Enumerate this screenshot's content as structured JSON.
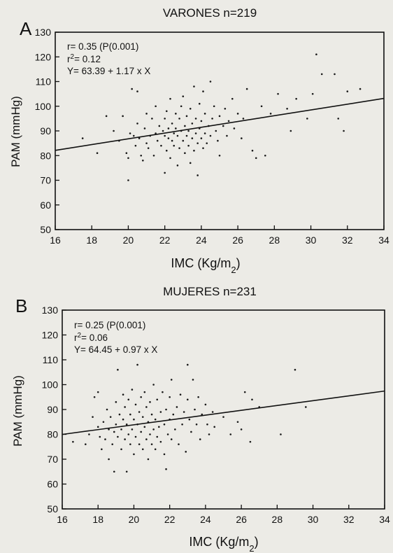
{
  "chart_data": [
    {
      "type": "scatter",
      "panel_label": "A",
      "title": "VARONES n=219",
      "xlabel": "IMC (Kg/m2)",
      "ylabel": "PAM (mmHg)",
      "xlim": [
        16,
        34
      ],
      "ylim": [
        50,
        130
      ],
      "xticks": [
        16,
        18,
        20,
        22,
        24,
        26,
        28,
        30,
        32,
        34
      ],
      "yticks": [
        50,
        60,
        70,
        80,
        90,
        100,
        110,
        120,
        130
      ],
      "annotations": [
        "r= 0.35 (P(0.001)",
        "r2= 0.12",
        "Y= 63.39 + 1.17 x X"
      ],
      "regression": {
        "intercept": 63.39,
        "slope": 1.17
      },
      "grid": false,
      "points": [
        [
          17.5,
          87
        ],
        [
          18.3,
          81
        ],
        [
          18.8,
          96
        ],
        [
          19.2,
          90
        ],
        [
          19.5,
          86
        ],
        [
          19.7,
          96
        ],
        [
          19.9,
          81
        ],
        [
          20.0,
          79
        ],
        [
          20.0,
          70
        ],
        [
          20.1,
          89
        ],
        [
          20.2,
          107
        ],
        [
          20.3,
          88
        ],
        [
          20.4,
          84
        ],
        [
          20.5,
          106
        ],
        [
          20.5,
          93
        ],
        [
          20.6,
          87
        ],
        [
          20.7,
          80
        ],
        [
          20.8,
          78
        ],
        [
          20.9,
          91
        ],
        [
          21.0,
          85
        ],
        [
          21.0,
          97
        ],
        [
          21.1,
          83
        ],
        [
          21.2,
          88
        ],
        [
          21.3,
          95
        ],
        [
          21.4,
          80
        ],
        [
          21.5,
          89
        ],
        [
          21.5,
          100
        ],
        [
          21.6,
          86
        ],
        [
          21.7,
          92
        ],
        [
          21.8,
          84
        ],
        [
          21.9,
          90
        ],
        [
          22.0,
          73
        ],
        [
          22.0,
          88
        ],
        [
          22.0,
          95
        ],
        [
          22.1,
          82
        ],
        [
          22.1,
          98
        ],
        [
          22.2,
          91
        ],
        [
          22.2,
          87
        ],
        [
          22.3,
          103
        ],
        [
          22.3,
          79
        ],
        [
          22.4,
          93
        ],
        [
          22.4,
          86
        ],
        [
          22.5,
          89
        ],
        [
          22.5,
          84
        ],
        [
          22.6,
          97
        ],
        [
          22.6,
          91
        ],
        [
          22.7,
          76
        ],
        [
          22.7,
          88
        ],
        [
          22.8,
          95
        ],
        [
          22.8,
          83
        ],
        [
          22.9,
          100
        ],
        [
          22.9,
          90
        ],
        [
          23.0,
          86
        ],
        [
          23.0,
          104
        ],
        [
          23.1,
          81
        ],
        [
          23.1,
          92
        ],
        [
          23.2,
          88
        ],
        [
          23.2,
          96
        ],
        [
          23.3,
          84
        ],
        [
          23.3,
          90
        ],
        [
          23.4,
          77
        ],
        [
          23.4,
          99
        ],
        [
          23.5,
          87
        ],
        [
          23.5,
          93
        ],
        [
          23.6,
          82
        ],
        [
          23.6,
          108
        ],
        [
          23.7,
          89
        ],
        [
          23.7,
          95
        ],
        [
          23.8,
          85
        ],
        [
          23.8,
          72
        ],
        [
          23.9,
          91
        ],
        [
          23.9,
          101
        ],
        [
          24.0,
          87
        ],
        [
          24.0,
          94
        ],
        [
          24.1,
          83
        ],
        [
          24.1,
          106
        ],
        [
          24.2,
          89
        ],
        [
          24.2,
          97
        ],
        [
          24.3,
          85
        ],
        [
          24.4,
          92
        ],
        [
          24.5,
          110
        ],
        [
          24.5,
          88
        ],
        [
          24.6,
          95
        ],
        [
          24.7,
          100
        ],
        [
          24.8,
          90
        ],
        [
          24.9,
          86
        ],
        [
          25.0,
          96
        ],
        [
          25.0,
          80
        ],
        [
          25.2,
          92
        ],
        [
          25.3,
          99
        ],
        [
          25.4,
          88
        ],
        [
          25.5,
          94
        ],
        [
          25.7,
          103
        ],
        [
          25.8,
          91
        ],
        [
          26.0,
          97
        ],
        [
          26.2,
          87
        ],
        [
          26.3,
          95
        ],
        [
          26.5,
          107
        ],
        [
          26.8,
          82
        ],
        [
          27.0,
          79
        ],
        [
          27.3,
          100
        ],
        [
          27.5,
          80
        ],
        [
          27.8,
          97
        ],
        [
          28.2,
          105
        ],
        [
          28.7,
          99
        ],
        [
          28.9,
          90
        ],
        [
          29.2,
          103
        ],
        [
          29.8,
          95
        ],
        [
          30.1,
          105
        ],
        [
          30.3,
          121
        ],
        [
          30.6,
          113
        ],
        [
          31.3,
          113
        ],
        [
          31.5,
          95
        ],
        [
          31.8,
          90
        ],
        [
          32.0,
          106
        ],
        [
          32.7,
          107
        ]
      ]
    },
    {
      "type": "scatter",
      "panel_label": "B",
      "title": "MUJERES n=231",
      "xlabel": "IMC (Kg/m2)",
      "ylabel": "PAM (mmHg)",
      "xlim": [
        16,
        34
      ],
      "ylim": [
        50,
        130
      ],
      "xticks": [
        16,
        18,
        20,
        22,
        24,
        26,
        28,
        30,
        32,
        34
      ],
      "yticks": [
        50,
        60,
        70,
        80,
        90,
        100,
        110,
        120,
        130
      ],
      "annotations": [
        "r= 0.25 (P(0.001)",
        "r2= 0.06",
        "Y= 64.45 + 0.97 x X"
      ],
      "regression": {
        "intercept": 64.45,
        "slope": 0.97
      },
      "grid": false,
      "points": [
        [
          16.6,
          77
        ],
        [
          17.3,
          76
        ],
        [
          17.5,
          80
        ],
        [
          17.7,
          87
        ],
        [
          17.8,
          95
        ],
        [
          18.0,
          83
        ],
        [
          18.0,
          97
        ],
        [
          18.1,
          79
        ],
        [
          18.2,
          74
        ],
        [
          18.3,
          85
        ],
        [
          18.4,
          78
        ],
        [
          18.5,
          90
        ],
        [
          18.6,
          82
        ],
        [
          18.6,
          70
        ],
        [
          18.7,
          87
        ],
        [
          18.8,
          76
        ],
        [
          18.9,
          81
        ],
        [
          18.9,
          65
        ],
        [
          19.0,
          93
        ],
        [
          19.0,
          84
        ],
        [
          19.1,
          79
        ],
        [
          19.1,
          106
        ],
        [
          19.2,
          88
        ],
        [
          19.3,
          74
        ],
        [
          19.3,
          82
        ],
        [
          19.4,
          96
        ],
        [
          19.4,
          86
        ],
        [
          19.5,
          78
        ],
        [
          19.5,
          91
        ],
        [
          19.6,
          65
        ],
        [
          19.6,
          84
        ],
        [
          19.7,
          80
        ],
        [
          19.7,
          94
        ],
        [
          19.8,
          76
        ],
        [
          19.8,
          88
        ],
        [
          19.9,
          82
        ],
        [
          19.9,
          98
        ],
        [
          20.0,
          72
        ],
        [
          20.0,
          86
        ],
        [
          20.1,
          79
        ],
        [
          20.1,
          92
        ],
        [
          20.2,
          84
        ],
        [
          20.2,
          108
        ],
        [
          20.3,
          76
        ],
        [
          20.3,
          89
        ],
        [
          20.4,
          81
        ],
        [
          20.4,
          95
        ],
        [
          20.5,
          74
        ],
        [
          20.5,
          87
        ],
        [
          20.6,
          83
        ],
        [
          20.6,
          97
        ],
        [
          20.7,
          78
        ],
        [
          20.7,
          91
        ],
        [
          20.8,
          85
        ],
        [
          20.8,
          70
        ],
        [
          20.9,
          80
        ],
        [
          20.9,
          93
        ],
        [
          21.0,
          76
        ],
        [
          21.0,
          88
        ],
        [
          21.1,
          82
        ],
        [
          21.1,
          100
        ],
        [
          21.2,
          74
        ],
        [
          21.2,
          86
        ],
        [
          21.3,
          79
        ],
        [
          21.3,
          94
        ],
        [
          21.4,
          83
        ],
        [
          21.5,
          89
        ],
        [
          21.5,
          77
        ],
        [
          21.6,
          97
        ],
        [
          21.7,
          84
        ],
        [
          21.7,
          72
        ],
        [
          21.8,
          90
        ],
        [
          21.8,
          66
        ],
        [
          21.9,
          80
        ],
        [
          22.0,
          95
        ],
        [
          22.0,
          86
        ],
        [
          22.1,
          78
        ],
        [
          22.1,
          102
        ],
        [
          22.2,
          88
        ],
        [
          22.3,
          82
        ],
        [
          22.4,
          91
        ],
        [
          22.5,
          76
        ],
        [
          22.6,
          96
        ],
        [
          22.7,
          84
        ],
        [
          22.8,
          89
        ],
        [
          22.9,
          73
        ],
        [
          23.0,
          94
        ],
        [
          23.0,
          108
        ],
        [
          23.1,
          86
        ],
        [
          23.2,
          81
        ],
        [
          23.3,
          102
        ],
        [
          23.4,
          90
        ],
        [
          23.5,
          84
        ],
        [
          23.6,
          95
        ],
        [
          23.7,
          78
        ],
        [
          23.8,
          88
        ],
        [
          24.0,
          92
        ],
        [
          24.1,
          84
        ],
        [
          24.2,
          80
        ],
        [
          24.4,
          89
        ],
        [
          24.5,
          83
        ],
        [
          25.0,
          87
        ],
        [
          25.4,
          80
        ],
        [
          25.8,
          85
        ],
        [
          26.0,
          82
        ],
        [
          26.2,
          97
        ],
        [
          26.5,
          77
        ],
        [
          26.6,
          94
        ],
        [
          27.0,
          91
        ],
        [
          28.2,
          80
        ],
        [
          29.0,
          106
        ],
        [
          29.6,
          91
        ]
      ]
    }
  ]
}
